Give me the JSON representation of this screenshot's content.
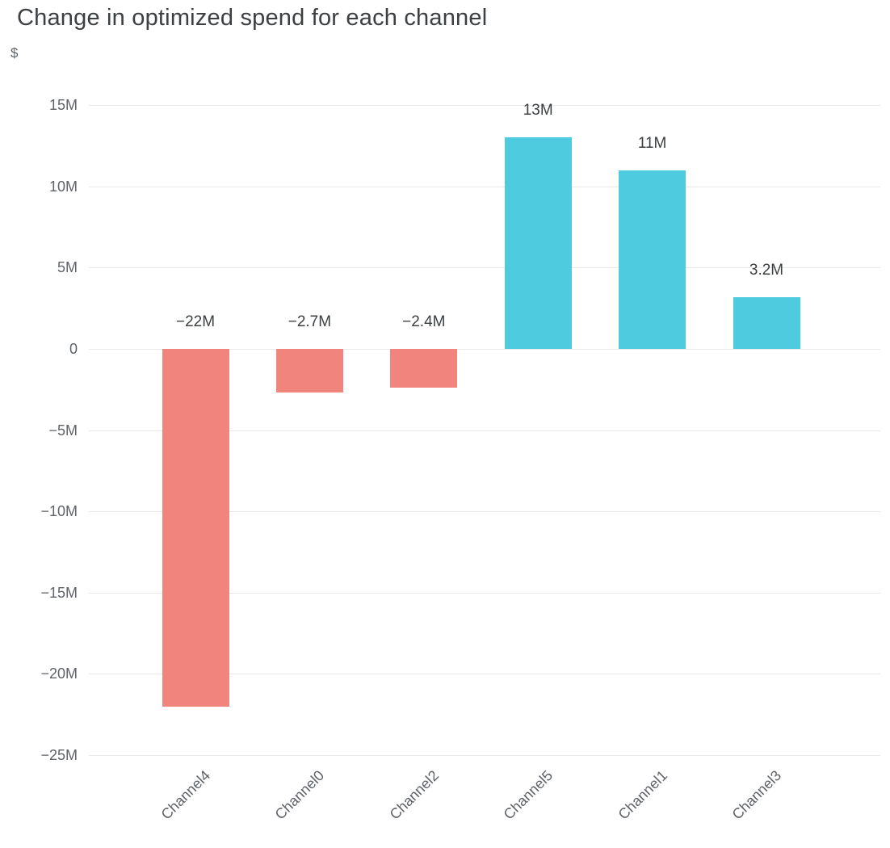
{
  "title": "Change in optimized spend for each channel",
  "chart_data": {
    "type": "bar",
    "title": "Change in optimized spend for each channel",
    "xlabel": "",
    "ylabel": "$",
    "categories": [
      "Channel4",
      "Channel0",
      "Channel2",
      "Channel5",
      "Channel1",
      "Channel3"
    ],
    "values": [
      -22000000,
      -2700000,
      -2400000,
      13000000,
      11000000,
      3200000
    ],
    "value_labels": [
      "−22M",
      "−2.7M",
      "−2.4M",
      "13M",
      "11M",
      "3.2M"
    ],
    "bar_roles": [
      "negative",
      "negative",
      "negative",
      "positive",
      "positive",
      "positive"
    ],
    "y_ticks": [
      15000000,
      10000000,
      5000000,
      0,
      -5000000,
      -10000000,
      -15000000,
      -20000000,
      -25000000
    ],
    "y_tick_labels": [
      "15M",
      "10M",
      "5M",
      "0",
      "−5M",
      "−10M",
      "−15M",
      "−20M",
      "−25M"
    ],
    "ylim": [
      -25000000,
      15000000
    ],
    "grid": true,
    "legend": "none",
    "colors": {
      "positive": "#4FCBE0",
      "negative": "#F1857D",
      "grid": "#E8E8E8",
      "title_text": "#3C4043",
      "axis_text": "#5F6368",
      "value_label_text": "#3C4043",
      "background": "#FFFFFF"
    }
  }
}
